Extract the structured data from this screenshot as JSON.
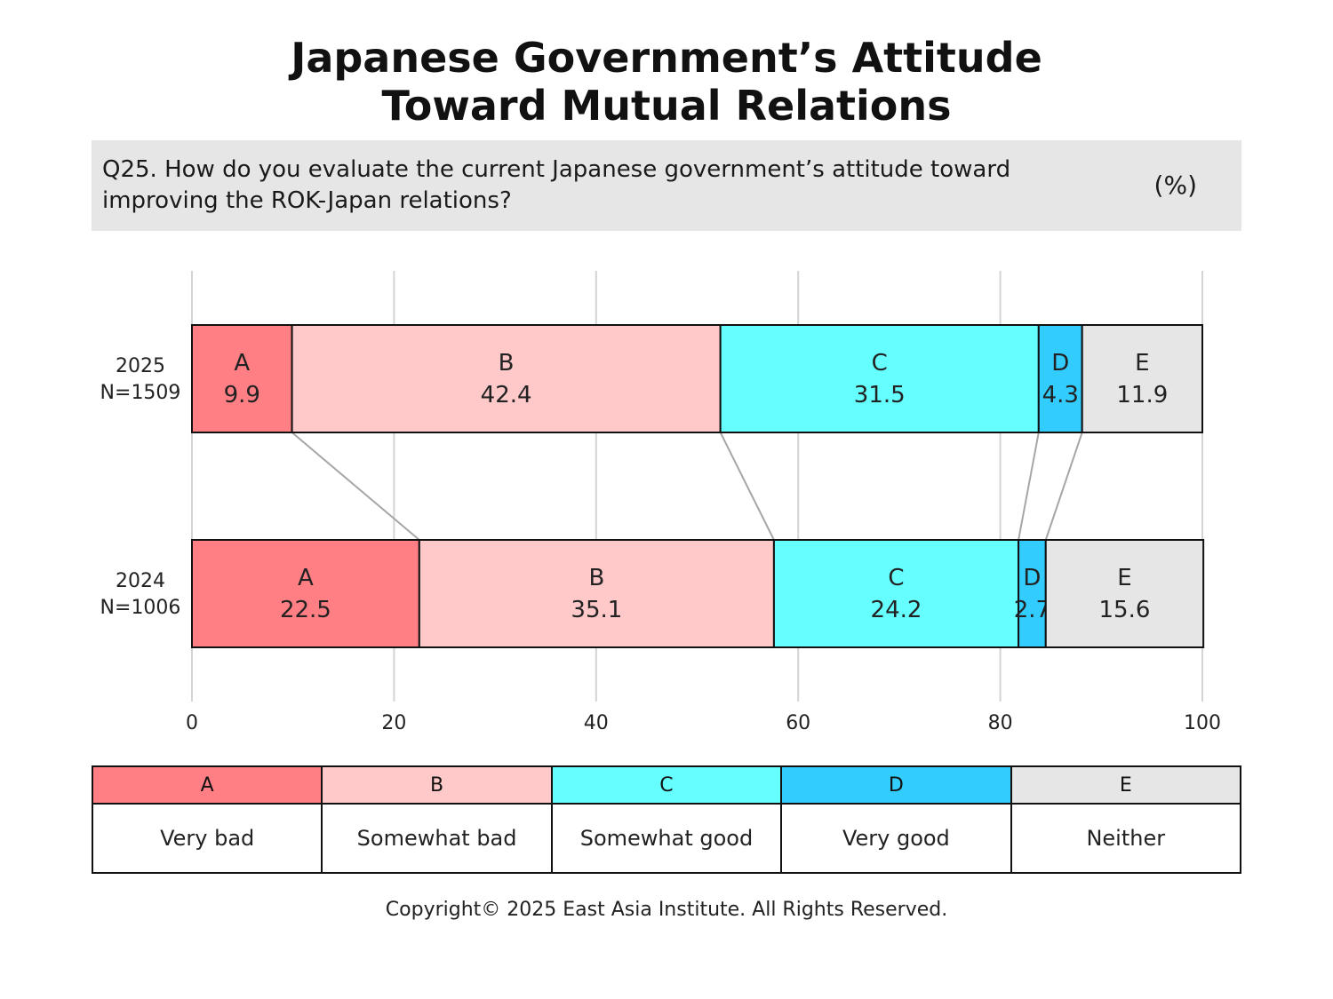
{
  "title_line1": "Japanese Government’s Attitude",
  "title_line2": "Toward Mutual Relations",
  "question": "Q25. How do you evaluate the current Japanese government’s attitude toward\nimproving the ROK-Japan relations?",
  "unit": "(%)",
  "copyright": "Copyright© 2025 East Asia Institute. All Rights Reserved.",
  "colors": {
    "A": "#ff7f84",
    "B": "#ffc9ca",
    "C": "#66ffff",
    "D": "#33ccff",
    "E": "#e7e6e7"
  },
  "legend": [
    {
      "key": "A",
      "label": "Very bad"
    },
    {
      "key": "B",
      "label": "Somewhat bad"
    },
    {
      "key": "C",
      "label": "Somewhat good"
    },
    {
      "key": "D",
      "label": "Very good"
    },
    {
      "key": "E",
      "label": "Neither"
    }
  ],
  "chart_data": {
    "type": "bar",
    "orientation": "horizontal",
    "stacked": "100%",
    "categories": [
      "2025\nN=1509",
      "2024\nN=1006"
    ],
    "series": [
      {
        "name": "A",
        "values": [
          9.9,
          22.5
        ]
      },
      {
        "name": "B",
        "values": [
          42.4,
          35.1
        ]
      },
      {
        "name": "C",
        "values": [
          31.5,
          24.2
        ]
      },
      {
        "name": "D",
        "values": [
          4.3,
          2.7
        ]
      },
      {
        "name": "E",
        "values": [
          11.9,
          15.6
        ]
      }
    ],
    "xlim": [
      0,
      100
    ],
    "xticks": [
      0,
      20,
      40,
      60,
      80,
      100
    ],
    "grid": true,
    "connector_lines": true
  }
}
